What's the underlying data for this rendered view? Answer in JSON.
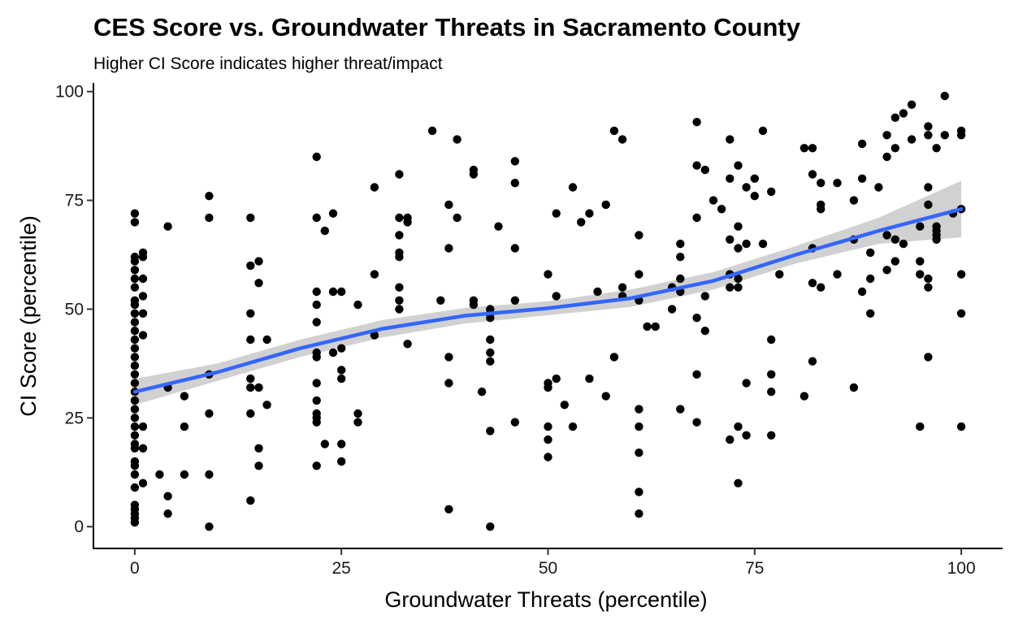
{
  "chart_data": {
    "type": "scatter",
    "title": "CES Score vs. Groundwater Threats in Sacramento County",
    "subtitle": "Higher CI Score indicates higher threat/impact",
    "xlabel": "Groundwater Threats (percentile)",
    "ylabel": "CI Score (percentile)",
    "xlim": [
      -5,
      105
    ],
    "ylim": [
      -5,
      102
    ],
    "xticks": [
      "0",
      "25",
      "50",
      "75",
      "100"
    ],
    "yticks": [
      "0",
      "25",
      "50",
      "75",
      "100"
    ],
    "grid": false,
    "legend": "none",
    "point_color": "#000000",
    "smooth_line_color": "#3366FF",
    "ribbon_color": "#BEBEBE",
    "points": [
      [
        0,
        72
      ],
      [
        0,
        70
      ],
      [
        0,
        62
      ],
      [
        0,
        61
      ],
      [
        0,
        59
      ],
      [
        0,
        57
      ],
      [
        0,
        55
      ],
      [
        0,
        52
      ],
      [
        0,
        51
      ],
      [
        0,
        49
      ],
      [
        0,
        47
      ],
      [
        0,
        45
      ],
      [
        0,
        43
      ],
      [
        0,
        41
      ],
      [
        0,
        39
      ],
      [
        0,
        37
      ],
      [
        0,
        35
      ],
      [
        0,
        33
      ],
      [
        0,
        31
      ],
      [
        0,
        29
      ],
      [
        0,
        27
      ],
      [
        0,
        25
      ],
      [
        0,
        23
      ],
      [
        0,
        21
      ],
      [
        0,
        19
      ],
      [
        0,
        18
      ],
      [
        0,
        15
      ],
      [
        0,
        14
      ],
      [
        0,
        12
      ],
      [
        0,
        9
      ],
      [
        0,
        5
      ],
      [
        0,
        4
      ],
      [
        0,
        3
      ],
      [
        0,
        2
      ],
      [
        0,
        1
      ],
      [
        1,
        63
      ],
      [
        1,
        62
      ],
      [
        1,
        57
      ],
      [
        1,
        53
      ],
      [
        1,
        49
      ],
      [
        1,
        44
      ],
      [
        1,
        23
      ],
      [
        1,
        18
      ],
      [
        1,
        10
      ],
      [
        3,
        12
      ],
      [
        4,
        69
      ],
      [
        4,
        32
      ],
      [
        4,
        7
      ],
      [
        4,
        3
      ],
      [
        6,
        30
      ],
      [
        6,
        23
      ],
      [
        6,
        12
      ],
      [
        9,
        76
      ],
      [
        9,
        71
      ],
      [
        9,
        35
      ],
      [
        9,
        26
      ],
      [
        9,
        12
      ],
      [
        9,
        0
      ],
      [
        14,
        71
      ],
      [
        14,
        60
      ],
      [
        14,
        49
      ],
      [
        14,
        43
      ],
      [
        14,
        34
      ],
      [
        14,
        32
      ],
      [
        14,
        26
      ],
      [
        14,
        6
      ],
      [
        15,
        61
      ],
      [
        15,
        56
      ],
      [
        15,
        32
      ],
      [
        15,
        18
      ],
      [
        15,
        14
      ],
      [
        16,
        43
      ],
      [
        16,
        28
      ],
      [
        22,
        85
      ],
      [
        22,
        71
      ],
      [
        22,
        54
      ],
      [
        22,
        51
      ],
      [
        22,
        47
      ],
      [
        22,
        40
      ],
      [
        22,
        39
      ],
      [
        22,
        33
      ],
      [
        22,
        29
      ],
      [
        22,
        26
      ],
      [
        22,
        25
      ],
      [
        22,
        24
      ],
      [
        22,
        14
      ],
      [
        23,
        68
      ],
      [
        23,
        19
      ],
      [
        24,
        72
      ],
      [
        24,
        54
      ],
      [
        24,
        40
      ],
      [
        25,
        54
      ],
      [
        25,
        41
      ],
      [
        25,
        36
      ],
      [
        25,
        34
      ],
      [
        25,
        19
      ],
      [
        25,
        15
      ],
      [
        27,
        51
      ],
      [
        27,
        26
      ],
      [
        27,
        24
      ],
      [
        29,
        78
      ],
      [
        29,
        58
      ],
      [
        29,
        44
      ],
      [
        32,
        81
      ],
      [
        32,
        71
      ],
      [
        32,
        67
      ],
      [
        32,
        63
      ],
      [
        32,
        62
      ],
      [
        32,
        55
      ],
      [
        32,
        52
      ],
      [
        32,
        50
      ],
      [
        33,
        71
      ],
      [
        33,
        70
      ],
      [
        33,
        42
      ],
      [
        36,
        91
      ],
      [
        37,
        52
      ],
      [
        38,
        74
      ],
      [
        38,
        64
      ],
      [
        38,
        39
      ],
      [
        38,
        33
      ],
      [
        38,
        4
      ],
      [
        39,
        89
      ],
      [
        39,
        71
      ],
      [
        41,
        82
      ],
      [
        41,
        81
      ],
      [
        41,
        52
      ],
      [
        41,
        51
      ],
      [
        42,
        31
      ],
      [
        43,
        50
      ],
      [
        43,
        49
      ],
      [
        43,
        48
      ],
      [
        43,
        43
      ],
      [
        43,
        40
      ],
      [
        43,
        38
      ],
      [
        43,
        22
      ],
      [
        43,
        0
      ],
      [
        44,
        69
      ],
      [
        46,
        84
      ],
      [
        46,
        79
      ],
      [
        46,
        64
      ],
      [
        46,
        52
      ],
      [
        46,
        24
      ],
      [
        50,
        58
      ],
      [
        50,
        33
      ],
      [
        50,
        32
      ],
      [
        50,
        23
      ],
      [
        50,
        20
      ],
      [
        50,
        16
      ],
      [
        51,
        72
      ],
      [
        51,
        53
      ],
      [
        51,
        34
      ],
      [
        52,
        28
      ],
      [
        53,
        78
      ],
      [
        53,
        23
      ],
      [
        54,
        70
      ],
      [
        55,
        72
      ],
      [
        55,
        34
      ],
      [
        56,
        54
      ],
      [
        57,
        74
      ],
      [
        57,
        30
      ],
      [
        58,
        91
      ],
      [
        58,
        39
      ],
      [
        59,
        89
      ],
      [
        59,
        55
      ],
      [
        59,
        53
      ],
      [
        61,
        67
      ],
      [
        61,
        58
      ],
      [
        61,
        52
      ],
      [
        61,
        27
      ],
      [
        61,
        23
      ],
      [
        61,
        17
      ],
      [
        61,
        8
      ],
      [
        61,
        3
      ],
      [
        62,
        46
      ],
      [
        63,
        46
      ],
      [
        65,
        55
      ],
      [
        65,
        50
      ],
      [
        66,
        65
      ],
      [
        66,
        62
      ],
      [
        66,
        57
      ],
      [
        66,
        54
      ],
      [
        66,
        27
      ],
      [
        68,
        93
      ],
      [
        68,
        83
      ],
      [
        68,
        71
      ],
      [
        68,
        48
      ],
      [
        68,
        35
      ],
      [
        68,
        24
      ],
      [
        69,
        82
      ],
      [
        69,
        53
      ],
      [
        69,
        45
      ],
      [
        70,
        75
      ],
      [
        71,
        73
      ],
      [
        72,
        89
      ],
      [
        72,
        80
      ],
      [
        72,
        66
      ],
      [
        72,
        58
      ],
      [
        72,
        55
      ],
      [
        72,
        20
      ],
      [
        73,
        83
      ],
      [
        73,
        69
      ],
      [
        73,
        64
      ],
      [
        73,
        57
      ],
      [
        73,
        55
      ],
      [
        73,
        23
      ],
      [
        73,
        10
      ],
      [
        74,
        78
      ],
      [
        74,
        65
      ],
      [
        74,
        33
      ],
      [
        74,
        21
      ],
      [
        75,
        80
      ],
      [
        75,
        76
      ],
      [
        76,
        91
      ],
      [
        76,
        65
      ],
      [
        77,
        77
      ],
      [
        77,
        43
      ],
      [
        77,
        35
      ],
      [
        77,
        31
      ],
      [
        77,
        21
      ],
      [
        78,
        58
      ],
      [
        81,
        87
      ],
      [
        81,
        30
      ],
      [
        82,
        87
      ],
      [
        82,
        81
      ],
      [
        82,
        64
      ],
      [
        82,
        56
      ],
      [
        82,
        38
      ],
      [
        83,
        79
      ],
      [
        83,
        74
      ],
      [
        83,
        73
      ],
      [
        83,
        55
      ],
      [
        85,
        79
      ],
      [
        85,
        58
      ],
      [
        87,
        75
      ],
      [
        87,
        66
      ],
      [
        87,
        32
      ],
      [
        88,
        88
      ],
      [
        88,
        80
      ],
      [
        88,
        54
      ],
      [
        89,
        63
      ],
      [
        89,
        57
      ],
      [
        89,
        49
      ],
      [
        90,
        78
      ],
      [
        91,
        90
      ],
      [
        91,
        85
      ],
      [
        91,
        67
      ],
      [
        91,
        59
      ],
      [
        92,
        94
      ],
      [
        92,
        87
      ],
      [
        92,
        66
      ],
      [
        92,
        61
      ],
      [
        93,
        95
      ],
      [
        93,
        65
      ],
      [
        94,
        97
      ],
      [
        94,
        89
      ],
      [
        95,
        69
      ],
      [
        95,
        61
      ],
      [
        95,
        58
      ],
      [
        95,
        23
      ],
      [
        96,
        92
      ],
      [
        96,
        90
      ],
      [
        96,
        78
      ],
      [
        96,
        74
      ],
      [
        96,
        57
      ],
      [
        96,
        55
      ],
      [
        96,
        39
      ],
      [
        97,
        87
      ],
      [
        97,
        69
      ],
      [
        97,
        68
      ],
      [
        97,
        67
      ],
      [
        97,
        66
      ],
      [
        98,
        99
      ],
      [
        98,
        90
      ],
      [
        99,
        72
      ],
      [
        100,
        91
      ],
      [
        100,
        90
      ],
      [
        100,
        73
      ],
      [
        100,
        58
      ],
      [
        100,
        49
      ],
      [
        100,
        23
      ]
    ],
    "smooth_line": [
      [
        0,
        31
      ],
      [
        10,
        35.5
      ],
      [
        20,
        41
      ],
      [
        30,
        45.5
      ],
      [
        40,
        48.5
      ],
      [
        50,
        50.2
      ],
      [
        60,
        52.5
      ],
      [
        70,
        56.5
      ],
      [
        80,
        62.5
      ],
      [
        90,
        68
      ],
      [
        100,
        73
      ]
    ],
    "ribbon_upper": [
      [
        0,
        34
      ],
      [
        10,
        37.5
      ],
      [
        20,
        43
      ],
      [
        30,
        47.5
      ],
      [
        40,
        50.3
      ],
      [
        50,
        51.8
      ],
      [
        60,
        54.5
      ],
      [
        70,
        58.5
      ],
      [
        80,
        64.5
      ],
      [
        90,
        71
      ],
      [
        100,
        79.5
      ]
    ],
    "ribbon_lower": [
      [
        0,
        28
      ],
      [
        10,
        33.5
      ],
      [
        20,
        39
      ],
      [
        30,
        43.5
      ],
      [
        40,
        46.7
      ],
      [
        50,
        48.6
      ],
      [
        60,
        50.5
      ],
      [
        70,
        54.5
      ],
      [
        80,
        60.5
      ],
      [
        90,
        65
      ],
      [
        100,
        66.5
      ]
    ]
  }
}
